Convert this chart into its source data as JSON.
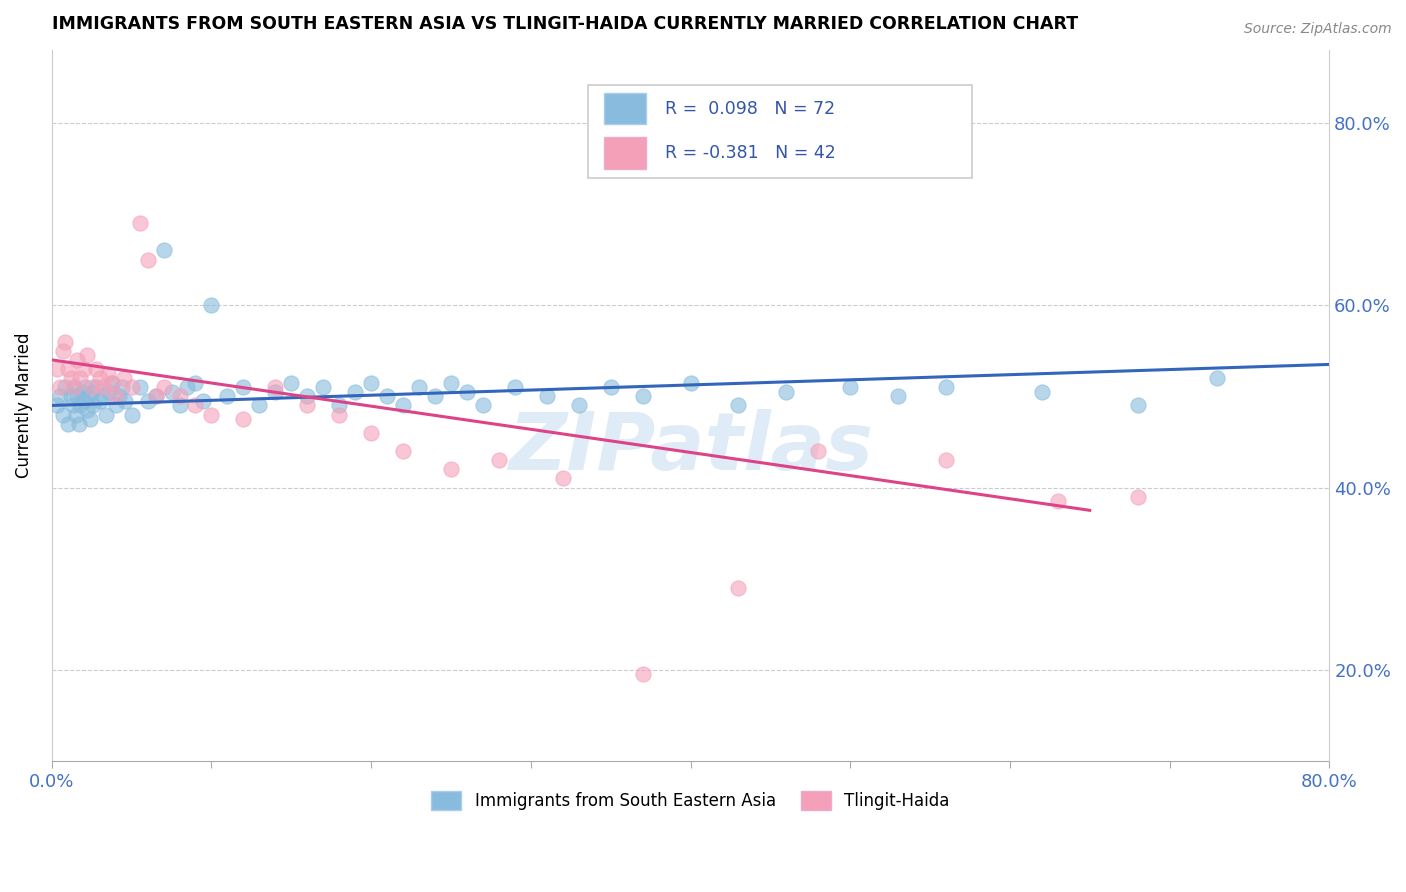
{
  "title": "IMMIGRANTS FROM SOUTH EASTERN ASIA VS TLINGIT-HAIDA CURRENTLY MARRIED CORRELATION CHART",
  "source": "Source: ZipAtlas.com",
  "ylabel": "Currently Married",
  "xlim": [
    0.0,
    0.8
  ],
  "ylim": [
    0.1,
    0.88
  ],
  "ytick_positions": [
    0.2,
    0.4,
    0.6,
    0.8
  ],
  "right_ytick_labels": [
    "20.0%",
    "40.0%",
    "60.0%",
    "80.0%"
  ],
  "xtick_positions": [
    0.0,
    0.1,
    0.2,
    0.3,
    0.4,
    0.5,
    0.6,
    0.7,
    0.8
  ],
  "blue_color": "#88bbdd",
  "pink_color": "#f4a0b8",
  "blue_line_color": "#3366bb",
  "pink_line_color": "#dd4488",
  "R_blue": 0.098,
  "N_blue": 72,
  "R_pink": -0.381,
  "N_pink": 42,
  "legend_label_blue": "Immigrants from South Eastern Asia",
  "legend_label_pink": "Tlingit-Haida",
  "blue_x": [
    0.003,
    0.005,
    0.007,
    0.008,
    0.01,
    0.012,
    0.013,
    0.014,
    0.015,
    0.016,
    0.017,
    0.018,
    0.019,
    0.02,
    0.021,
    0.022,
    0.023,
    0.024,
    0.025,
    0.026,
    0.028,
    0.03,
    0.032,
    0.034,
    0.036,
    0.038,
    0.04,
    0.042,
    0.044,
    0.046,
    0.05,
    0.055,
    0.06,
    0.065,
    0.07,
    0.075,
    0.08,
    0.085,
    0.09,
    0.095,
    0.1,
    0.11,
    0.12,
    0.13,
    0.14,
    0.15,
    0.16,
    0.17,
    0.18,
    0.19,
    0.2,
    0.21,
    0.22,
    0.23,
    0.24,
    0.25,
    0.26,
    0.27,
    0.29,
    0.31,
    0.33,
    0.35,
    0.37,
    0.4,
    0.43,
    0.46,
    0.5,
    0.53,
    0.56,
    0.62,
    0.68,
    0.73
  ],
  "blue_y": [
    0.49,
    0.5,
    0.48,
    0.51,
    0.47,
    0.5,
    0.49,
    0.51,
    0.48,
    0.5,
    0.47,
    0.49,
    0.505,
    0.495,
    0.51,
    0.485,
    0.5,
    0.475,
    0.505,
    0.49,
    0.51,
    0.495,
    0.5,
    0.48,
    0.505,
    0.515,
    0.49,
    0.5,
    0.51,
    0.495,
    0.48,
    0.51,
    0.495,
    0.5,
    0.66,
    0.505,
    0.49,
    0.51,
    0.515,
    0.495,
    0.6,
    0.5,
    0.51,
    0.49,
    0.505,
    0.515,
    0.5,
    0.51,
    0.49,
    0.505,
    0.515,
    0.5,
    0.49,
    0.51,
    0.5,
    0.515,
    0.505,
    0.49,
    0.51,
    0.5,
    0.49,
    0.51,
    0.5,
    0.515,
    0.49,
    0.505,
    0.51,
    0.5,
    0.51,
    0.505,
    0.49,
    0.52
  ],
  "pink_x": [
    0.003,
    0.005,
    0.007,
    0.008,
    0.01,
    0.012,
    0.014,
    0.016,
    0.018,
    0.02,
    0.022,
    0.025,
    0.028,
    0.03,
    0.032,
    0.035,
    0.038,
    0.04,
    0.045,
    0.05,
    0.055,
    0.06,
    0.065,
    0.07,
    0.08,
    0.09,
    0.1,
    0.12,
    0.14,
    0.16,
    0.18,
    0.2,
    0.22,
    0.25,
    0.28,
    0.32,
    0.37,
    0.43,
    0.48,
    0.56,
    0.63,
    0.68
  ],
  "pink_y": [
    0.53,
    0.51,
    0.55,
    0.56,
    0.53,
    0.52,
    0.51,
    0.54,
    0.52,
    0.53,
    0.545,
    0.51,
    0.53,
    0.52,
    0.51,
    0.525,
    0.515,
    0.5,
    0.52,
    0.51,
    0.69,
    0.65,
    0.5,
    0.51,
    0.5,
    0.49,
    0.48,
    0.475,
    0.51,
    0.49,
    0.48,
    0.46,
    0.44,
    0.42,
    0.43,
    0.41,
    0.195,
    0.29,
    0.44,
    0.43,
    0.385,
    0.39
  ],
  "blue_trend_x": [
    0.0,
    0.8
  ],
  "blue_trend_y": [
    0.49,
    0.535
  ],
  "pink_trend_x": [
    0.0,
    0.65
  ],
  "pink_trend_y": [
    0.54,
    0.375
  ]
}
